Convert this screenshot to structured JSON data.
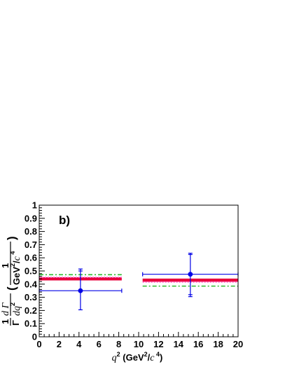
{
  "chart_data": {
    "type": "scatter",
    "panel_label": "b)",
    "x_axis": {
      "label_var": "q",
      "label_var_sup": "2",
      "label_unit_pre": "(GeV",
      "label_unit_sup": "2",
      "label_unit_mid": "/",
      "label_unit_c": "c",
      "label_unit_c_sup": " 4",
      "label_unit_post": ")",
      "range": [
        0,
        20
      ],
      "ticks": [
        "0",
        "2",
        "4",
        "6",
        "8",
        "10",
        "12",
        "14",
        "16",
        "18",
        "20"
      ]
    },
    "y_axis": {
      "frac1_num": "1",
      "frac1_den": "Γ",
      "frac2_num": "d Γ",
      "frac2_den": "dq",
      "frac2_den_sup": "2",
      "paren_open": "(",
      "frac3_num": "1",
      "frac3_den_unit": "GeV",
      "frac3_den_sup": "2",
      "frac3_den_slash": "/",
      "frac3_den_c": "c",
      "frac3_den_c_sup": " 4",
      "paren_close": ")",
      "range": [
        0,
        1
      ],
      "ticks": [
        "0",
        "0.1",
        "0.2",
        "0.3",
        "0.4",
        "0.5",
        "0.6",
        "0.7",
        "0.8",
        "0.9",
        "1"
      ]
    },
    "data_points": [
      {
        "x": 4.15,
        "x_low": 0,
        "x_high": 8.3,
        "y": 0.35,
        "y_err_stat_low": 0.345,
        "y_err_stat_high": 0.5,
        "y_err_tot_low": 0.205,
        "y_err_tot_high": 0.515
      },
      {
        "x": 15.2,
        "x_low": 10.4,
        "x_high": 20,
        "y": 0.475,
        "y_err_stat_low": 0.32,
        "y_err_stat_high": 0.625,
        "y_err_tot_low": 0.305,
        "y_err_tot_high": 0.635
      }
    ],
    "prediction_bands": [
      {
        "color": "#e8003c",
        "style": "solid-thick",
        "segments": [
          {
            "x_start": 0,
            "x_end": 8.3,
            "y": 0.44
          },
          {
            "x_start": 10.4,
            "x_end": 20,
            "y": 0.43
          }
        ]
      },
      {
        "color": "#ff66cc",
        "style": "dotted",
        "segments": [
          {
            "x_start": 0,
            "x_end": 8.3,
            "y": 0.452
          },
          {
            "x_start": 10.4,
            "x_end": 20,
            "y": 0.415
          }
        ]
      },
      {
        "color": "#2dbb2d",
        "style": "dash-dot",
        "segments": [
          {
            "x_start": 0,
            "x_end": 8.3,
            "y": 0.472
          },
          {
            "x_start": 10.4,
            "x_end": 20,
            "y": 0.385
          }
        ]
      }
    ],
    "colors": {
      "data": "#0000e6",
      "axis": "#000000"
    }
  }
}
